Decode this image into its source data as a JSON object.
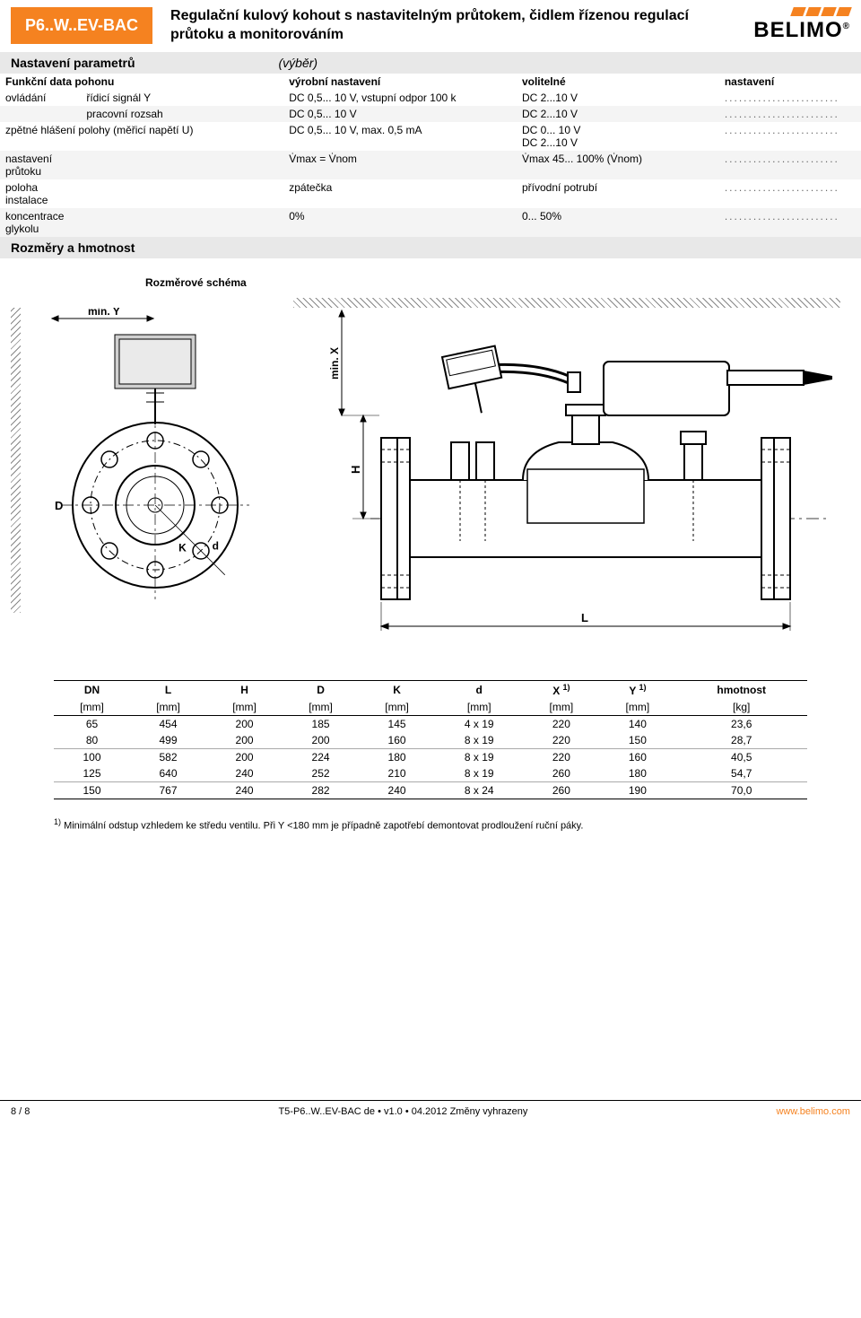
{
  "colors": {
    "accent": "#f58220",
    "gray_bar": "#e8e8e8",
    "row_alt": "#f4f4f4"
  },
  "header": {
    "badge": "P6..W..EV-BAC",
    "title": "Regulační kulový kohout s nastavitelným průtokem, čidlem řízenou regulací průtoku a monitorováním",
    "logo_text": "BELIMO",
    "logo_reg": "®"
  },
  "params_section": {
    "title": "Nastavení parametrů",
    "note": "(výběr)",
    "header_row": {
      "c1": "Funkční data pohonu",
      "c3": "výrobní nastavení",
      "c4": "volitelné",
      "c5": "nastavení"
    },
    "rows": [
      {
        "alt": false,
        "c1": "ovládání",
        "c2": "řídicí signál Y",
        "c3": "DC 0,5... 10 V, vstupní odpor 100 k",
        "c4": "DC 2...10 V",
        "c5": "........................"
      },
      {
        "alt": true,
        "c1": "",
        "c2": "pracovní rozsah",
        "c3": "DC 0,5... 10 V",
        "c4": "DC 2...10 V",
        "c5": "........................"
      },
      {
        "alt": false,
        "c1": "",
        "c2": "zpětné hlášení polohy (měřicí napětí U)",
        "c1_span": true,
        "c3": "DC 0,5... 10 V, max. 0,5 mA",
        "c4": "DC 0... 10 V\nDC 2...10 V",
        "c5": "........................"
      },
      {
        "alt": true,
        "c1": "nastavení průtoku",
        "c2": "",
        "c3": "V̇max = V̇nom",
        "c4": "V̇max 45... 100% (V̇nom)",
        "c5": "........................"
      },
      {
        "alt": false,
        "c1": "poloha instalace",
        "c2": "",
        "c3": "zpátečka",
        "c4": "přívodní potrubí",
        "c5": "........................"
      },
      {
        "alt": true,
        "c1": "koncentrace glykolu",
        "c2": "",
        "c3": "0%",
        "c4": "0... 50%",
        "c5": "........................"
      }
    ]
  },
  "dims_section": {
    "title": "Rozměry a hmotnost",
    "schema_label": "Rozměrové schéma",
    "labels": {
      "minY": "min. Y",
      "minX": "min. X",
      "H": "H",
      "D": "D",
      "d": "d",
      "K": "K",
      "L": "L"
    }
  },
  "dim_table": {
    "columns": [
      {
        "label": "DN",
        "unit": "[mm]"
      },
      {
        "label": "L",
        "unit": "[mm]"
      },
      {
        "label": "H",
        "unit": "[mm]"
      },
      {
        "label": "D",
        "unit": "[mm]"
      },
      {
        "label": "K",
        "unit": "[mm]"
      },
      {
        "label": "d",
        "unit": "[mm]"
      },
      {
        "label": "X 1)",
        "unit": "[mm]",
        "sup": true
      },
      {
        "label": "Y 1)",
        "unit": "[mm]",
        "sup": true
      },
      {
        "label": "hmotnost",
        "unit": "[kg]"
      }
    ],
    "rows": [
      [
        "65",
        "454",
        "200",
        "185",
        "145",
        "4 x 19",
        "220",
        "140",
        "23,6"
      ],
      [
        "80",
        "499",
        "200",
        "200",
        "160",
        "8 x 19",
        "220",
        "150",
        "28,7"
      ],
      [
        "100",
        "582",
        "200",
        "224",
        "180",
        "8 x 19",
        "220",
        "160",
        "40,5"
      ],
      [
        "125",
        "640",
        "240",
        "252",
        "210",
        "8 x 19",
        "260",
        "180",
        "54,7"
      ],
      [
        "150",
        "767",
        "240",
        "282",
        "240",
        "8 x 24",
        "260",
        "190",
        "70,0"
      ]
    ],
    "footnote_sup": "1)",
    "footnote": " Minimální odstup vzhledem ke středu ventilu. Při Y <180 mm je případně zapotřebí demontovat prodloužení ruční páky."
  },
  "footer": {
    "left": "8 / 8",
    "center": "T5-P6..W..EV-BAC de • v1.0 • 04.2012 Změny vyhrazeny",
    "right": "www.belimo.com"
  }
}
